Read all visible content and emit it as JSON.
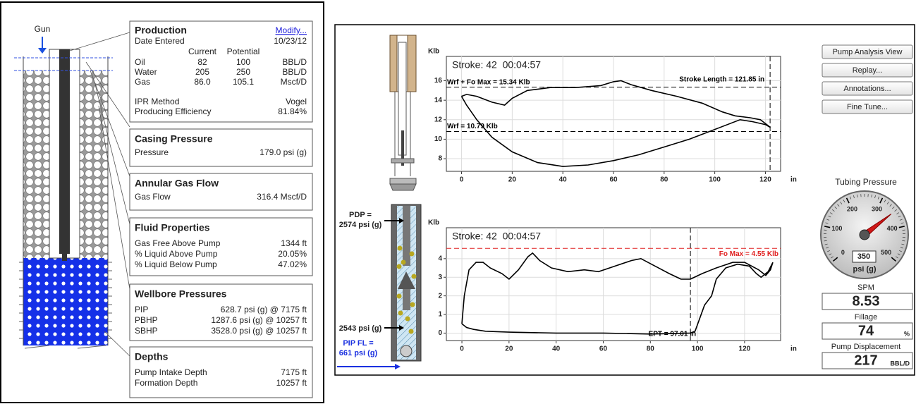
{
  "left_panel": {
    "gun_label": "Gun",
    "production": {
      "title": "Production",
      "modify_link": "Modify...",
      "date_label": "Date Entered",
      "date": "10/23/12",
      "columns": [
        "Current",
        "Potential"
      ],
      "rows": [
        [
          "Oil",
          "82",
          "100",
          "BBL/D"
        ],
        [
          "Water",
          "205",
          "250",
          "BBL/D"
        ],
        [
          "Gas",
          "86.0",
          "105.1",
          "Mscf/D"
        ]
      ],
      "ipr_label": "IPR Method",
      "ipr": "Vogel",
      "efficiency_label": "Producing Efficiency",
      "efficiency": "81.84%"
    },
    "boxes": [
      {
        "title": "Casing Pressure",
        "rows": [
          [
            "Pressure",
            "179.0 psi (g)"
          ]
        ]
      },
      {
        "title": "Annular Gas Flow",
        "rows": [
          [
            "Gas Flow",
            "316.4 Mscf/D"
          ]
        ]
      },
      {
        "title": "Fluid Properties",
        "rows": [
          [
            "Gas Free Above Pump",
            "1344 ft"
          ],
          [
            "% Liquid Above Pump",
            "20.05%"
          ],
          [
            "% Liquid Below Pump",
            "47.02%"
          ]
        ]
      },
      {
        "title": "Wellbore Pressures",
        "rows": [
          [
            "PIP",
            "628.7 psi (g) @ 7175 ft"
          ],
          [
            "PBHP",
            "1287.6 psi (g) @ 10257 ft"
          ],
          [
            "SBHP",
            "3528.0 psi (g) @ 10257 ft"
          ]
        ]
      },
      {
        "title": "Depths",
        "rows": [
          [
            "Pump Intake Depth",
            "7175 ft"
          ],
          [
            "Formation Depth",
            "10257 ft"
          ]
        ]
      }
    ]
  },
  "surface_card": {
    "stroke_label": "Stroke: 42  00:04:57",
    "y_unit": "Klb",
    "x_unit": "in",
    "xlim": [
      -6,
      126
    ],
    "ylim": [
      6.7,
      18.5
    ],
    "xticks": [
      0,
      20,
      40,
      60,
      80,
      100,
      120
    ],
    "yticks": [
      8,
      10,
      12,
      14,
      16
    ],
    "x": [
      0,
      2,
      6,
      12,
      17,
      20,
      26,
      35,
      45,
      55,
      60,
      63,
      67,
      75,
      85,
      95,
      103,
      108,
      114,
      118,
      122,
      120,
      115,
      110,
      100,
      90,
      80,
      70,
      60,
      50,
      40,
      30,
      20,
      12,
      6,
      2,
      0
    ],
    "y": [
      14.4,
      14.6,
      14.4,
      13.8,
      13.5,
      14.2,
      15.0,
      15.3,
      15.3,
      15.5,
      15.9,
      16.0,
      15.6,
      15.0,
      14.4,
      13.7,
      12.8,
      12.4,
      12.2,
      12.0,
      11.2,
      11.5,
      11.8,
      12.0,
      11.0,
      10.0,
      9.2,
      8.4,
      7.8,
      7.35,
      7.2,
      7.6,
      8.7,
      10.2,
      12.0,
      13.5,
      14.4
    ],
    "lines": [
      {
        "label": "Wrf + Fo Max = 15.34 Klb",
        "axis": "y",
        "value": 15.34,
        "color": "#000000"
      },
      {
        "label": "Stroke Length = 121.85 in",
        "axis": "x",
        "value": 121.85,
        "color": "#000000"
      },
      {
        "label": "Wrf = 10.79 Klb",
        "axis": "y",
        "value": 10.79,
        "color": "#000000"
      }
    ]
  },
  "pump_card": {
    "stroke_label": "Stroke: 42  00:04:57",
    "y_unit": "Klb",
    "x_unit": "in",
    "xlim": [
      -6.6,
      135.3
    ],
    "ylim": [
      -0.4,
      5.66
    ],
    "xticks": [
      0,
      20,
      40,
      60,
      80,
      100,
      120
    ],
    "yticks": [
      0,
      1,
      2,
      3,
      4
    ],
    "x": [
      0,
      1,
      3,
      6,
      9,
      12,
      17,
      20,
      24,
      28,
      30,
      33,
      38,
      45,
      52,
      58,
      65,
      72,
      76,
      82,
      88,
      93,
      97,
      102,
      108,
      115,
      120,
      126,
      129,
      131,
      132,
      130,
      127,
      125,
      122,
      117,
      112,
      108,
      106,
      103,
      101,
      99,
      97,
      80,
      60,
      40,
      20,
      10,
      5,
      2,
      0
    ],
    "y": [
      0.5,
      2.0,
      3.4,
      3.8,
      3.8,
      3.5,
      3.2,
      2.9,
      3.4,
      4.1,
      4.3,
      3.9,
      3.5,
      3.3,
      3.4,
      3.3,
      3.6,
      3.9,
      4.0,
      3.6,
      3.2,
      2.9,
      2.9,
      3.2,
      3.5,
      3.8,
      3.8,
      3.4,
      3.1,
      3.4,
      3.8,
      3.3,
      3.0,
      3.2,
      3.6,
      3.7,
      3.5,
      2.9,
      2.0,
      1.5,
      0.8,
      0.1,
      0,
      -0.05,
      0,
      0,
      0.05,
      0.1,
      0.2,
      0.3,
      0.5
    ],
    "lines": [
      {
        "label": "Fo Max = 4.55 Klb",
        "axis": "y",
        "value": 4.55,
        "color": "#e02020"
      },
      {
        "label": "EPT = 97.01 in",
        "axis": "x",
        "value": 97.01,
        "color": "#000000"
      }
    ]
  },
  "pump_labels": {
    "pdp": [
      "PDP =",
      "2574 psi (g)"
    ],
    "pressure_below": "2543 psi (g)",
    "pip_fl": [
      "PIP FL =",
      "661 psi (g)"
    ]
  },
  "buttons": [
    "Pump Analysis View",
    "Replay...",
    "Annotations...",
    "Fine Tune..."
  ],
  "tubing_gauge": {
    "title": "Tubing Pressure",
    "lim": [
      0,
      500
    ],
    "ticks": [
      0,
      100,
      200,
      300,
      400,
      500
    ],
    "value": 350,
    "unit": "psi (g)"
  },
  "readouts": [
    {
      "label": "SPM",
      "value": "8.53"
    },
    {
      "label": "Fillage",
      "value": "74",
      "unit": "%"
    },
    {
      "label": "Pump Displacement",
      "value": "217",
      "unit": "BBL/D"
    }
  ]
}
